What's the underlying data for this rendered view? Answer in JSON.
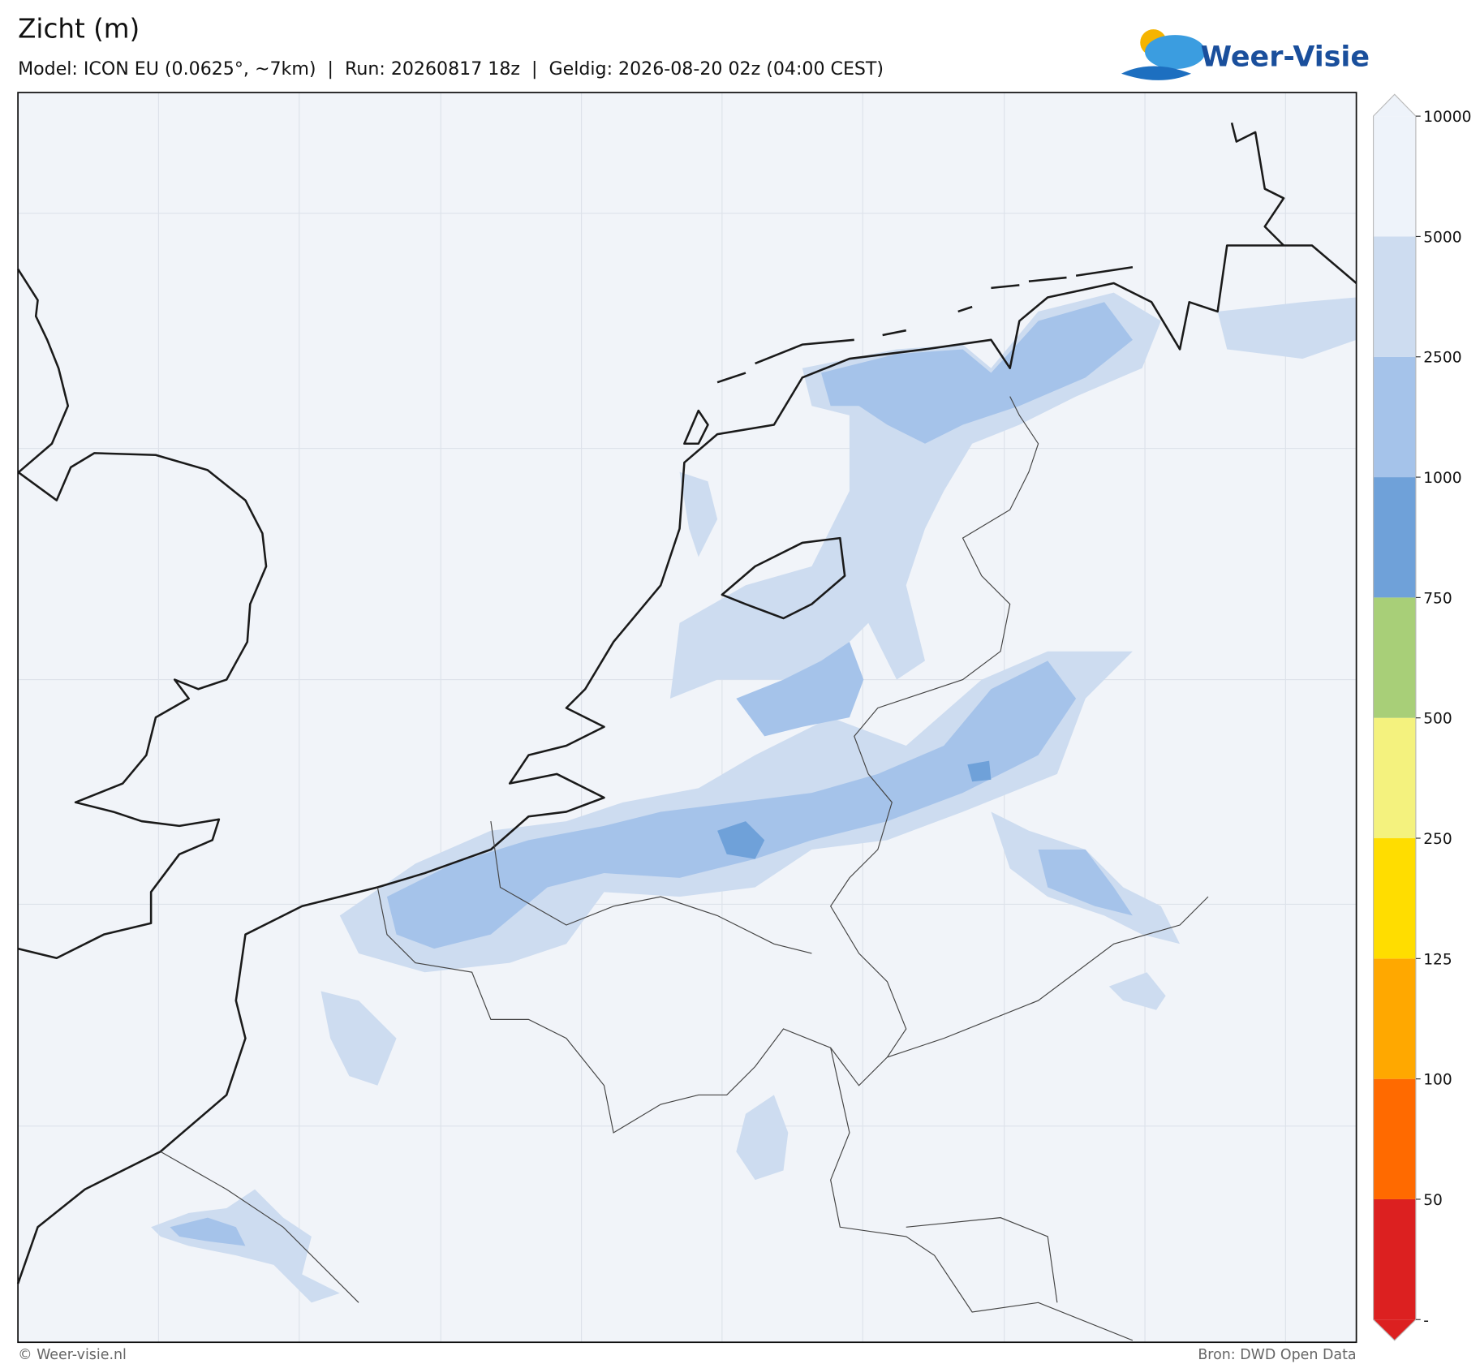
{
  "header": {
    "title": "Zicht (m)",
    "subtitle": "Model: ICON EU (0.0625°, ~7km)  |  Run: 20260817 18z  |  Geldig: 2026-08-20 02z (04:00 CEST)",
    "logo": "Weer-Visie"
  },
  "colorbar": {
    "ticks": [
      {
        "value": 0,
        "label": "-"
      },
      50,
      100,
      125,
      250,
      500,
      750,
      1000,
      2500,
      5000,
      10000
    ],
    "colors": [
      "#dc2020",
      "#ff6a00",
      "#ffa800",
      "#ffdd00",
      "#f4f27e",
      "#a8cf78",
      "#6fa1d9",
      "#a5c3ea",
      "#cddcf0",
      "#eef3fa"
    ]
  },
  "footer": {
    "left": "© Weer-visie.nl",
    "right": "Bron: DWD Open Data"
  }
}
